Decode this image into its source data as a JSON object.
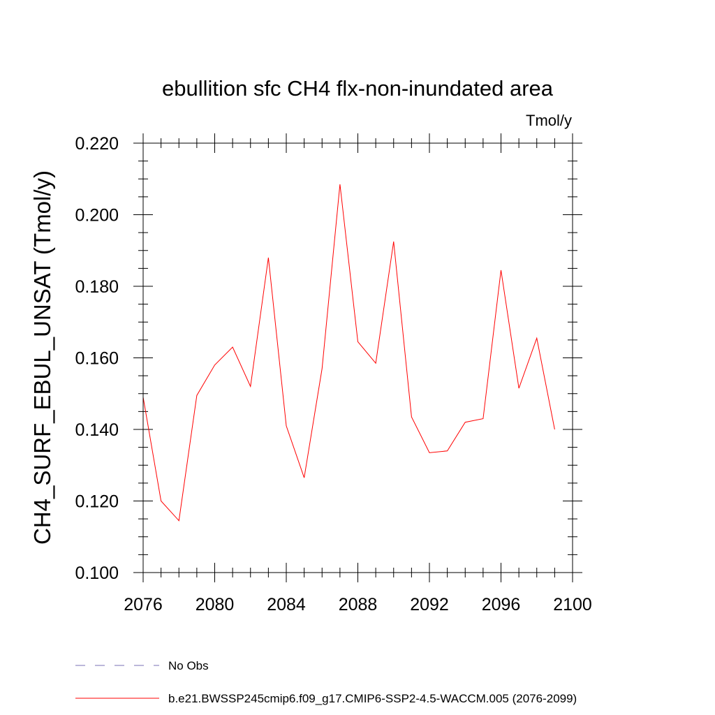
{
  "chart_data": {
    "type": "line",
    "title": "ebullition sfc CH4 flx-non-inundated area",
    "units": "Tmol/y",
    "xlabel": "",
    "ylabel": "CH4_SURF_EBUL_UNSAT  (Tmol/y)",
    "xlim": [
      2076,
      2100
    ],
    "ylim": [
      0.1,
      0.22
    ],
    "x_ticks": [
      "2076",
      "2080",
      "2084",
      "2088",
      "2092",
      "2096",
      "2100"
    ],
    "y_ticks": [
      "0.100",
      "0.120",
      "0.140",
      "0.160",
      "0.180",
      "0.200",
      "0.220"
    ],
    "series": [
      {
        "name": "b.e21.BWSSP245cmip6.f09_g17.CMIP6-SSP2-4.5-WACCM.005 (2076-2099)",
        "color": "#ff0000",
        "x": [
          2076,
          2077,
          2078,
          2079,
          2080,
          2081,
          2082,
          2083,
          2084,
          2085,
          2086,
          2087,
          2088,
          2089,
          2090,
          2091,
          2092,
          2093,
          2094,
          2095,
          2096,
          2097,
          2098,
          2099
        ],
        "values": [
          0.149,
          0.12,
          0.1145,
          0.1495,
          0.158,
          0.163,
          0.152,
          0.188,
          0.141,
          0.1265,
          0.157,
          0.2085,
          0.1645,
          0.1585,
          0.1925,
          0.1435,
          0.1335,
          0.134,
          0.142,
          0.143,
          0.1845,
          0.1515,
          0.1655,
          0.14
        ]
      }
    ],
    "legend": [
      {
        "label": "No Obs",
        "color": "#7a6fb5",
        "style": "dashed"
      },
      {
        "label": "b.e21.BWSSP245cmip6.f09_g17.CMIP6-SSP2-4.5-WACCM.005 (2076-2099)",
        "color": "#ff0000",
        "style": "solid"
      }
    ],
    "legend_placement": "bottom"
  }
}
